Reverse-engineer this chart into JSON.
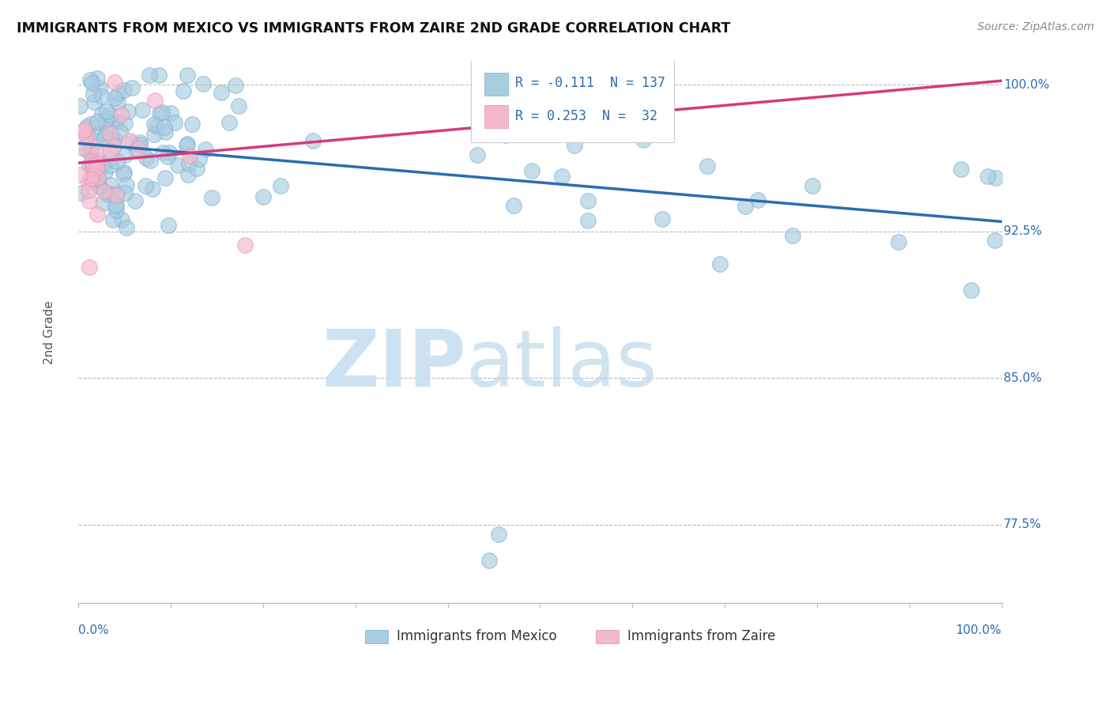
{
  "title": "IMMIGRANTS FROM MEXICO VS IMMIGRANTS FROM ZAIRE 2ND GRADE CORRELATION CHART",
  "source": "Source: ZipAtlas.com",
  "ylabel": "2nd Grade",
  "R_mexico": -0.111,
  "N_mexico": 137,
  "R_zaire": 0.253,
  "N_zaire": 32,
  "xlim": [
    0.0,
    1.0
  ],
  "ylim": [
    0.735,
    1.012
  ],
  "yticks": [
    0.775,
    0.85,
    0.925,
    1.0
  ],
  "ytick_labels": [
    "77.5%",
    "85.0%",
    "92.5%",
    "100.0%"
  ],
  "background_color": "#ffffff",
  "scatter_color_mexico": "#a8cce0",
  "scatter_color_zaire": "#f4b8cc",
  "line_color_mexico": "#2b6cb0",
  "line_color_zaire": "#d63a7a",
  "text_color_blue": "#2b6cb0",
  "watermark_zip_color": "#c8dff0",
  "watermark_atlas_color": "#b8d4e8",
  "legend_box_color": "#f0f8ff",
  "mexico_trend_start_y": 0.97,
  "mexico_trend_end_y": 0.93,
  "zaire_trend_start_y": 0.96,
  "zaire_trend_end_y": 1.002,
  "seed": 12345
}
